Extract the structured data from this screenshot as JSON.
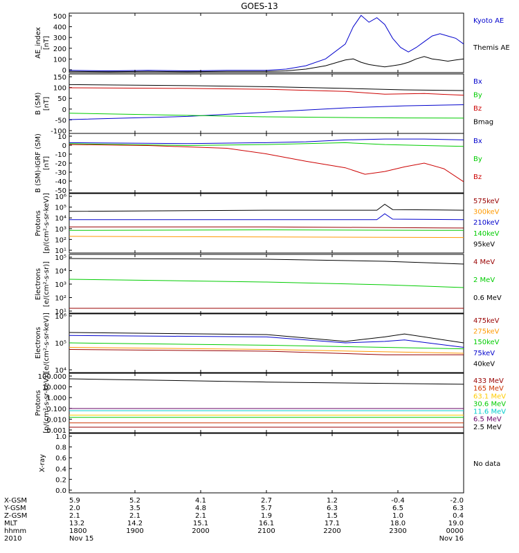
{
  "title": "GOES-13",
  "chart_data": [
    {
      "type": "line",
      "id": "ae",
      "ylabel": "AE_index\n[nT]",
      "yticks": [
        "500",
        "400",
        "300",
        "200",
        "100",
        "0"
      ],
      "ylim": [
        0,
        520
      ],
      "series": [
        {
          "name": "Kyoto AE",
          "color": "#0000cc",
          "x": [
            0,
            0.1,
            0.2,
            0.3,
            0.4,
            0.5,
            0.55,
            0.6,
            0.65,
            0.7,
            0.72,
            0.74,
            0.76,
            0.78,
            0.8,
            0.82,
            0.84,
            0.86,
            0.88,
            0.9,
            0.92,
            0.94,
            0.96,
            0.98,
            1.0
          ],
          "y": [
            20,
            15,
            20,
            15,
            20,
            20,
            30,
            60,
            120,
            250,
            400,
            500,
            440,
            480,
            420,
            300,
            220,
            180,
            220,
            270,
            320,
            340,
            320,
            300,
            250
          ]
        },
        {
          "name": "Themis AE",
          "color": "#000000",
          "x": [
            0,
            0.1,
            0.2,
            0.3,
            0.4,
            0.5,
            0.55,
            0.6,
            0.65,
            0.7,
            0.72,
            0.74,
            0.76,
            0.78,
            0.8,
            0.82,
            0.84,
            0.86,
            0.88,
            0.9,
            0.92,
            0.94,
            0.96,
            0.98,
            1.0
          ],
          "y": [
            10,
            8,
            10,
            8,
            10,
            10,
            15,
            30,
            60,
            110,
            120,
            90,
            70,
            60,
            50,
            60,
            70,
            90,
            120,
            140,
            120,
            110,
            100,
            110,
            120
          ]
        }
      ]
    },
    {
      "type": "line",
      "id": "bsm",
      "ylabel": "B (SM)\n[nT]",
      "yticks": [
        "150",
        "100",
        "50",
        "0",
        "-50",
        "-100"
      ],
      "ylim": [
        -120,
        160
      ],
      "series": [
        {
          "name": "Bx",
          "color": "#0000cc",
          "x": [
            0,
            0.3,
            0.5,
            0.7,
            0.85,
            1.0
          ],
          "y": [
            -55,
            -40,
            -20,
            0,
            10,
            15
          ]
        },
        {
          "name": "By",
          "color": "#00cc00",
          "x": [
            0,
            0.3,
            0.5,
            0.7,
            0.85,
            1.0
          ],
          "y": [
            -25,
            -35,
            -42,
            -45,
            -47,
            -48
          ]
        },
        {
          "name": "Bz",
          "color": "#cc0000",
          "x": [
            0,
            0.3,
            0.5,
            0.7,
            0.8,
            0.9,
            1.0
          ],
          "y": [
            95,
            92,
            88,
            78,
            65,
            68,
            60
          ]
        },
        {
          "name": "Bmag",
          "color": "#000000",
          "x": [
            0,
            0.3,
            0.5,
            0.7,
            0.85,
            1.0
          ],
          "y": [
            110,
            105,
            100,
            92,
            85,
            82
          ]
        }
      ]
    },
    {
      "type": "line",
      "id": "bigrf",
      "ylabel": "B (SM)-IGRF (SM)\n[nT]",
      "yticks": [
        "10",
        "0",
        "-10",
        "-20",
        "-30",
        "-40",
        "-50"
      ],
      "ylim": [
        -52,
        12
      ],
      "series": [
        {
          "name": "Bx",
          "color": "#0000cc",
          "x": [
            0,
            0.3,
            0.5,
            0.6,
            0.7,
            0.8,
            0.9,
            1.0
          ],
          "y": [
            2,
            1,
            2,
            3,
            5,
            6,
            6,
            5
          ]
        },
        {
          "name": "By",
          "color": "#00cc00",
          "x": [
            0,
            0.3,
            0.5,
            0.6,
            0.7,
            0.8,
            0.9,
            1.0
          ],
          "y": [
            1,
            -1,
            0,
            1,
            2,
            0,
            -1,
            -2
          ]
        },
        {
          "name": "Bz",
          "color": "#cc0000",
          "x": [
            0,
            0.2,
            0.4,
            0.5,
            0.6,
            0.7,
            0.75,
            0.8,
            0.85,
            0.9,
            0.95,
            1.0
          ],
          "y": [
            0,
            -1,
            -4,
            -10,
            -18,
            -25,
            -32,
            -29,
            -24,
            -20,
            -26,
            -40
          ]
        }
      ]
    },
    {
      "type": "line",
      "id": "protons_low",
      "ylabel": "Protons\n[p/(cm²-s-sr-keV)]",
      "yscale": "log",
      "yticks": [
        "10⁶",
        "10⁵",
        "10⁴",
        "10³",
        "10²",
        "10¹"
      ],
      "ylim": [
        1,
        6
      ],
      "series": [
        {
          "name": "575keV",
          "color": "#990000",
          "x": [
            0,
            0.5,
            1.0
          ],
          "y": [
            3.2,
            3.2,
            3.1
          ]
        },
        {
          "name": "300keV",
          "color": "#ff9900",
          "x": [
            0,
            0.5,
            1.0
          ],
          "y": [
            2.4,
            2.35,
            2.3
          ]
        },
        {
          "name": "210keV",
          "color": "#0000cc",
          "x": [
            0,
            0.5,
            0.78,
            0.8,
            0.82,
            1.0
          ],
          "y": [
            3.8,
            3.8,
            3.8,
            4.3,
            3.85,
            3.8
          ]
        },
        {
          "name": "140keV",
          "color": "#00cc00",
          "x": [
            0,
            0.5,
            1.0
          ],
          "y": [
            2.9,
            2.95,
            2.9
          ]
        },
        {
          "name": "95keV",
          "color": "#000000",
          "x": [
            0,
            0.5,
            0.78,
            0.8,
            0.82,
            1.0
          ],
          "y": [
            4.5,
            4.6,
            4.6,
            5.1,
            4.65,
            4.6
          ]
        }
      ]
    },
    {
      "type": "line",
      "id": "electrons_high",
      "ylabel": "Electrons\n[e/(cm²-s-sr)]",
      "yscale": "log",
      "yticks": [
        "10⁵",
        "10⁴",
        "10³",
        "10²",
        "10¹"
      ],
      "ylim": [
        0.7,
        5
      ],
      "series": [
        {
          "name": "4 MeV",
          "color": "#990000",
          "x": [
            0,
            1.0
          ],
          "y": [
            1.1,
            1.1
          ]
        },
        {
          "name": "2 MeV",
          "color": "#00cc00",
          "x": [
            0,
            0.5,
            0.8,
            1.0
          ],
          "y": [
            3.2,
            3.0,
            2.8,
            2.6
          ]
        },
        {
          "name": "0.6 MeV",
          "color": "#000000",
          "x": [
            0,
            0.5,
            0.8,
            1.0
          ],
          "y": [
            4.7,
            4.65,
            4.5,
            4.3
          ]
        }
      ]
    },
    {
      "type": "line",
      "id": "electrons_low",
      "ylabel": "Electrons\n[e/(cm²-s-sr-keV)]",
      "yscale": "log",
      "yticks": [
        "10⁶",
        "10⁵",
        "10⁴"
      ],
      "ylim": [
        4,
        6
      ],
      "series": [
        {
          "name": "475keV",
          "color": "#990000",
          "x": [
            0,
            0.5,
            0.8,
            1.0
          ],
          "y": [
            4.78,
            4.72,
            4.6,
            4.6
          ]
        },
        {
          "name": "275keV",
          "color": "#ff9900",
          "x": [
            0,
            0.5,
            0.8,
            1.0
          ],
          "y": [
            4.85,
            4.78,
            4.7,
            4.65
          ]
        },
        {
          "name": "150keV",
          "color": "#00cc00",
          "x": [
            0,
            0.5,
            0.8,
            1.0
          ],
          "y": [
            5.0,
            4.92,
            4.85,
            4.8
          ]
        },
        {
          "name": "75keV",
          "color": "#0000cc",
          "x": [
            0,
            0.5,
            0.7,
            0.8,
            0.85,
            1.0
          ],
          "y": [
            5.25,
            5.2,
            5.0,
            5.05,
            5.1,
            4.85
          ]
        },
        {
          "name": "40keV",
          "color": "#000000",
          "x": [
            0,
            0.5,
            0.7,
            0.8,
            0.85,
            1.0
          ],
          "y": [
            5.35,
            5.28,
            5.05,
            5.2,
            5.3,
            5.0
          ]
        }
      ]
    },
    {
      "type": "line",
      "id": "protons_high",
      "ylabel": "Protons\n[p/(cm²-s-sr-keV)]",
      "yscale": "log",
      "yticks": [
        "100.000",
        "10.000",
        "1.000",
        "0.100",
        "0.010",
        "0.001"
      ],
      "ylim": [
        -3.2,
        2.2
      ],
      "series": [
        {
          "name": "433 MeV",
          "color": "#990000",
          "x": [
            0,
            1.0
          ],
          "y": [
            -2.7,
            -2.7
          ]
        },
        {
          "name": "165 MeV",
          "color": "#cc3300",
          "x": [
            0,
            1.0
          ],
          "y": [
            -2.3,
            -2.3
          ]
        },
        {
          "name": "63.1 MeV",
          "color": "#ffcc00",
          "x": [
            0,
            1.0
          ],
          "y": [
            -1.6,
            -1.6
          ]
        },
        {
          "name": "30.6 MeV",
          "color": "#00cc00",
          "x": [
            0,
            1.0
          ],
          "y": [
            -1.8,
            -1.8
          ]
        },
        {
          "name": "11.6 MeV",
          "color": "#00cccc",
          "x": [
            0,
            1.0
          ],
          "y": [
            -1.2,
            -1.2
          ]
        },
        {
          "name": "6.5 MeV",
          "color": "#660066",
          "x": [
            0,
            1.0
          ],
          "y": [
            -1.0,
            -1.0
          ]
        },
        {
          "name": "2.5 MeV",
          "color": "#000000",
          "x": [
            0,
            0.5,
            1.0
          ],
          "y": [
            1.7,
            1.4,
            1.2
          ]
        }
      ]
    },
    {
      "type": "line",
      "id": "xray",
      "ylabel": "X-ray",
      "yticks": [
        "1.0",
        "0.8",
        "0.6",
        "0.4",
        "0.2",
        "0.0"
      ],
      "ylim": [
        0,
        1
      ],
      "legend_note": "No data",
      "series": []
    }
  ],
  "x_axis": {
    "row_labels": [
      "X-GSM",
      "Y-GSM",
      "Z-GSM",
      "MLT",
      "hhmm",
      "2010"
    ],
    "columns": [
      {
        "vals": [
          "5.9",
          "2.0",
          "2.1",
          "13.2",
          "1800",
          "Nov 15"
        ]
      },
      {
        "vals": [
          "5.2",
          "3.5",
          "2.1",
          "14.2",
          "1900",
          ""
        ]
      },
      {
        "vals": [
          "4.1",
          "4.8",
          "2.1",
          "15.1",
          "2000",
          ""
        ]
      },
      {
        "vals": [
          "2.7",
          "5.7",
          "1.9",
          "16.1",
          "2100",
          ""
        ]
      },
      {
        "vals": [
          "1.2",
          "6.3",
          "1.5",
          "17.1",
          "2200",
          ""
        ]
      },
      {
        "vals": [
          "-0.4",
          "6.5",
          "1.0",
          "18.0",
          "2300",
          ""
        ]
      },
      {
        "vals": [
          "-2.0",
          "6.3",
          "0.4",
          "19.0",
          "0000",
          "Nov 16"
        ]
      }
    ]
  }
}
